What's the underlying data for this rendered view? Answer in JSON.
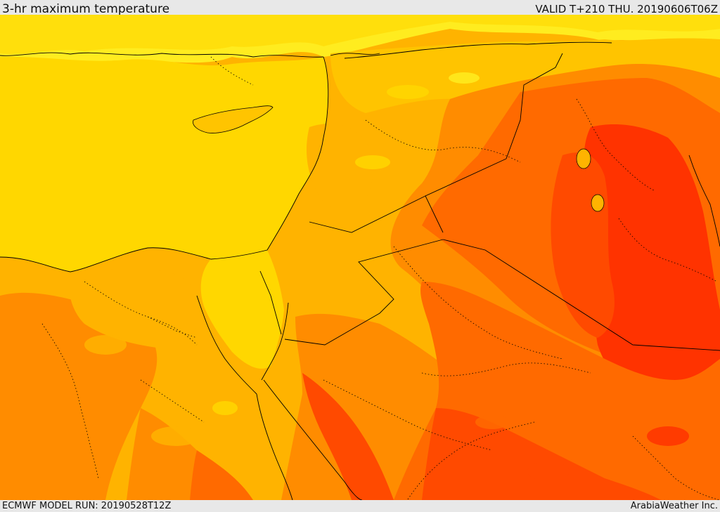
{
  "header": {
    "title": "3-hr maximum temperature",
    "valid": "VALID T+210 THU. 20190606T06Z"
  },
  "footer": {
    "model_run": "ECMWF MODEL RUN: 20190528T12Z",
    "credit": "ArabiaWeather Inc."
  },
  "map": {
    "field": "3-hr maximum temperature",
    "palette": {
      "light_yellow": "#ffec1f",
      "yellow": "#ffd700",
      "orange_yellow": "#ffb300",
      "orange": "#ff8c00",
      "dark_orange": "#ff6a00",
      "red_orange": "#ff4a00",
      "red": "#ff3300"
    },
    "line_colors": {
      "coastline": "#000000",
      "border": "#000000"
    }
  }
}
